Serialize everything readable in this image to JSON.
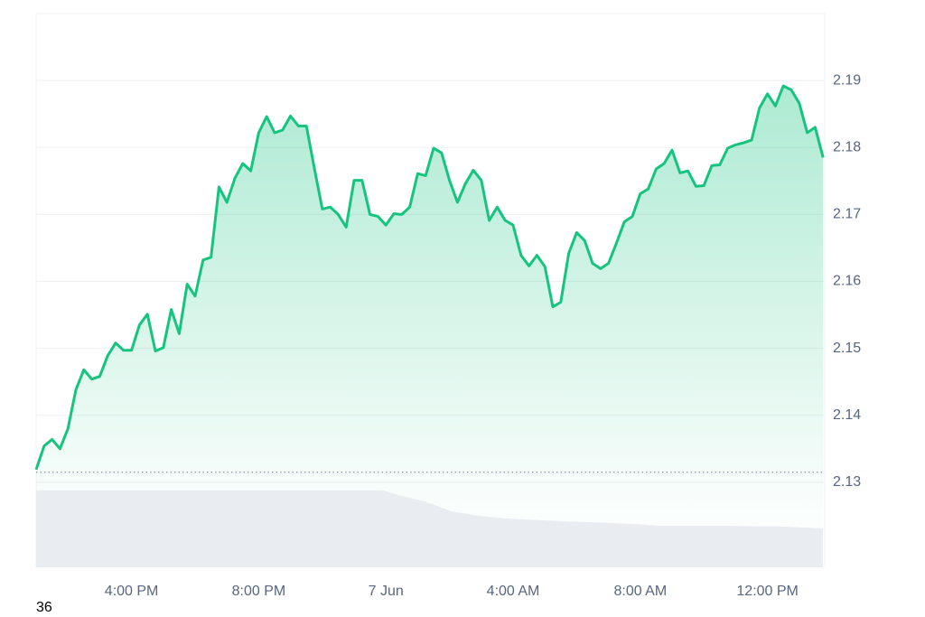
{
  "page_number": "36",
  "chart_data": {
    "type": "line",
    "area": true,
    "color": "#16c47f",
    "x": [
      13,
      13.25,
      13.5,
      13.75,
      14,
      14.25,
      14.5,
      14.75,
      15,
      15.25,
      15.5,
      15.75,
      16,
      16.25,
      16.5,
      16.75,
      17,
      17.25,
      17.5,
      17.75,
      18,
      18.25,
      18.5,
      18.75,
      19,
      19.25,
      19.5,
      19.75,
      20,
      20.25,
      20.5,
      20.75,
      21,
      21.25,
      21.5,
      21.75,
      22,
      22.25,
      22.5,
      22.75,
      23,
      23.25,
      23.5,
      23.75,
      24,
      24.25,
      24.5,
      24.75,
      25,
      25.25,
      25.5,
      25.75,
      26,
      26.25,
      26.5,
      26.75,
      27,
      27.25,
      27.5,
      27.75,
      28,
      28.25,
      28.5,
      28.75,
      29,
      29.25,
      29.5,
      29.75,
      30,
      30.25,
      30.5,
      30.75,
      31,
      31.25,
      31.5,
      31.75,
      32,
      32.25,
      32.5,
      32.75,
      33,
      33.25,
      33.5,
      33.75,
      34,
      34.25,
      34.5,
      34.75,
      35,
      35.25,
      35.5,
      35.75,
      36,
      36.25,
      36.5,
      36.75,
      37,
      37.25,
      37.5,
      37.75
    ],
    "values": [
      2.1319,
      2.1354,
      2.1364,
      2.135,
      2.138,
      2.1438,
      2.1468,
      2.1454,
      2.1458,
      2.1489,
      2.1508,
      2.1497,
      2.1497,
      2.1535,
      2.1551,
      2.1496,
      2.1501,
      2.1558,
      2.1522,
      2.1596,
      2.1578,
      2.1632,
      2.1636,
      2.1741,
      2.1718,
      2.1754,
      2.1776,
      2.1765,
      2.1822,
      2.1846,
      2.1822,
      2.1826,
      2.1847,
      2.1832,
      2.1832,
      2.1769,
      2.1708,
      2.1711,
      2.17,
      2.1681,
      2.1751,
      2.1751,
      2.17,
      2.1697,
      2.1684,
      2.1701,
      2.17,
      2.1711,
      2.1761,
      2.1758,
      2.1799,
      2.1792,
      2.1751,
      2.1718,
      2.1746,
      2.1766,
      2.1751,
      2.1691,
      2.1711,
      2.1691,
      2.1684,
      2.1639,
      2.1623,
      2.1639,
      2.1622,
      2.1562,
      2.1569,
      2.1642,
      2.1673,
      2.1661,
      2.1627,
      2.1619,
      2.1627,
      2.1657,
      2.1689,
      2.1697,
      2.1731,
      2.1738,
      2.1768,
      2.1776,
      2.1796,
      2.1762,
      2.1765,
      2.1742,
      2.1743,
      2.1773,
      2.1774,
      2.1799,
      2.1804,
      2.1807,
      2.1811,
      2.1859,
      2.188,
      2.1862,
      2.1892,
      2.1886,
      2.1866,
      2.1822,
      2.183,
      2.1785
    ],
    "baseline": 2.1315,
    "xlim": [
      13,
      37.8
    ],
    "xticks": [
      {
        "value": 16,
        "label": "4:00 PM"
      },
      {
        "value": 20,
        "label": "8:00 PM"
      },
      {
        "value": 24,
        "label": "7 Jun"
      },
      {
        "value": 28,
        "label": "4:00 AM"
      },
      {
        "value": 32,
        "label": "8:00 AM"
      },
      {
        "value": 36,
        "label": "12:00 PM"
      }
    ],
    "ylim": [
      2.1173,
      2.2
    ],
    "yticks": [
      2.13,
      2.14,
      2.15,
      2.16,
      2.17,
      2.18,
      2.19
    ],
    "grid": true
  }
}
